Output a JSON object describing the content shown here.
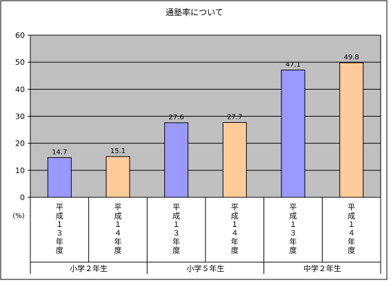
{
  "chart_data": {
    "type": "bar",
    "title": "通塾率について",
    "ylabel": "(%)",
    "ylim": [
      0,
      60
    ],
    "yticks": [
      0,
      10,
      20,
      30,
      40,
      50,
      60
    ],
    "grid": true,
    "bars": [
      {
        "label": "平成１３年度",
        "value": 14.7,
        "value_label": "14.7",
        "series": "h13",
        "group": 0
      },
      {
        "label": "平成１４年度",
        "value": 15.1,
        "value_label": "15.1",
        "series": "h14",
        "group": 0
      },
      {
        "label": "平成１３年度",
        "value": 27.6,
        "value_label": "27.6",
        "series": "h13",
        "group": 1
      },
      {
        "label": "平成１４年度",
        "value": 27.7,
        "value_label": "27.7",
        "series": "h14",
        "group": 1
      },
      {
        "label": "平成１３年度",
        "value": 47.1,
        "value_label": "47.1",
        "series": "h13",
        "group": 2
      },
      {
        "label": "平成１４年度",
        "value": 49.8,
        "value_label": "49.8",
        "series": "h14",
        "group": 2
      }
    ],
    "groups": [
      "小学２年生",
      "小学５年生",
      "中学２年生"
    ],
    "colors": {
      "h13": "#9999ff",
      "h14": "#ffcc99",
      "plot_background": "#c0c0c0",
      "outline": "#000000"
    }
  }
}
